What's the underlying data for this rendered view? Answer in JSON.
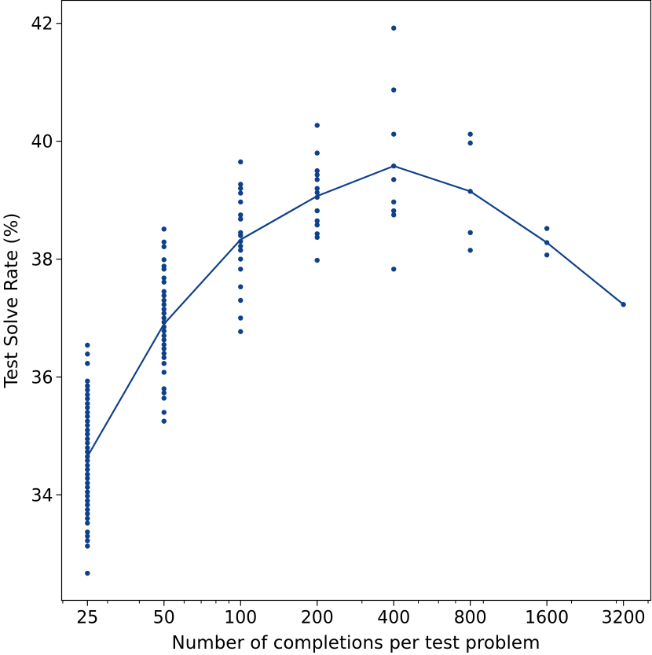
{
  "chart_data": {
    "type": "scatter",
    "title": "",
    "xlabel": "Number of completions per test problem",
    "ylabel": "Test Solve Rate (%)",
    "x_scale": "log2",
    "x_ticks": [
      25,
      50,
      100,
      200,
      400,
      800,
      1600,
      3200
    ],
    "x_tick_labels": [
      "25",
      "50",
      "100",
      "200",
      "400",
      "800",
      "1600",
      "3200"
    ],
    "xlim": [
      19.8,
      4100
    ],
    "y_ticks": [
      34,
      36,
      38,
      40,
      42
    ],
    "y_tick_labels": [
      "34",
      "36",
      "38",
      "40",
      "42"
    ],
    "ylim": [
      32.21,
      42.39
    ],
    "grid": false,
    "color": "#0f418a",
    "points": [
      {
        "x": 25,
        "y": [
          36.54,
          36.39,
          36.23,
          35.93,
          35.85,
          35.78,
          35.7,
          35.63,
          35.55,
          35.48,
          35.4,
          35.33,
          35.25,
          35.18,
          35.1,
          35.03,
          34.95,
          34.88,
          34.8,
          34.73,
          34.65,
          34.58,
          34.5,
          34.43,
          34.35,
          34.28,
          34.2,
          34.13,
          34.05,
          33.98,
          33.9,
          33.83,
          33.75,
          33.68,
          33.6,
          33.52,
          33.37,
          33.3,
          33.22,
          33.13,
          32.67
        ]
      },
      {
        "x": 50,
        "y": [
          38.51,
          38.29,
          38.21,
          37.99,
          37.88,
          37.83,
          37.68,
          37.61,
          37.45,
          37.38,
          37.3,
          37.23,
          37.15,
          37.08,
          37.0,
          36.93,
          36.85,
          36.78,
          36.7,
          36.63,
          36.55,
          36.48,
          36.4,
          36.33,
          36.23,
          36.08,
          35.8,
          35.73,
          35.64,
          35.4,
          35.25
        ]
      },
      {
        "x": 100,
        "y": [
          39.65,
          39.27,
          39.2,
          39.12,
          38.97,
          38.75,
          38.68,
          38.45,
          38.4,
          38.3,
          38.22,
          38.15,
          38.0,
          37.83,
          37.53,
          37.3,
          37.0,
          36.77
        ]
      },
      {
        "x": 200,
        "y": [
          40.27,
          39.8,
          39.5,
          39.43,
          39.35,
          39.2,
          39.13,
          39.05,
          38.82,
          38.65,
          38.58,
          38.43,
          38.37,
          37.98
        ]
      },
      {
        "x": 400,
        "y": [
          41.92,
          40.87,
          40.12,
          39.58,
          39.35,
          38.97,
          38.82,
          38.75,
          37.83
        ]
      },
      {
        "x": 800,
        "y": [
          40.12,
          39.97,
          39.15,
          38.45,
          38.15
        ]
      },
      {
        "x": 1600,
        "y": [
          38.52,
          38.28,
          38.07
        ]
      },
      {
        "x": 3200,
        "y": [
          37.23
        ]
      }
    ],
    "mean_line": {
      "x": [
        25,
        50,
        100,
        200,
        400,
        800,
        1600,
        3200
      ],
      "y": [
        34.65,
        36.9,
        38.33,
        39.07,
        39.58,
        39.15,
        38.28,
        37.23
      ]
    }
  }
}
